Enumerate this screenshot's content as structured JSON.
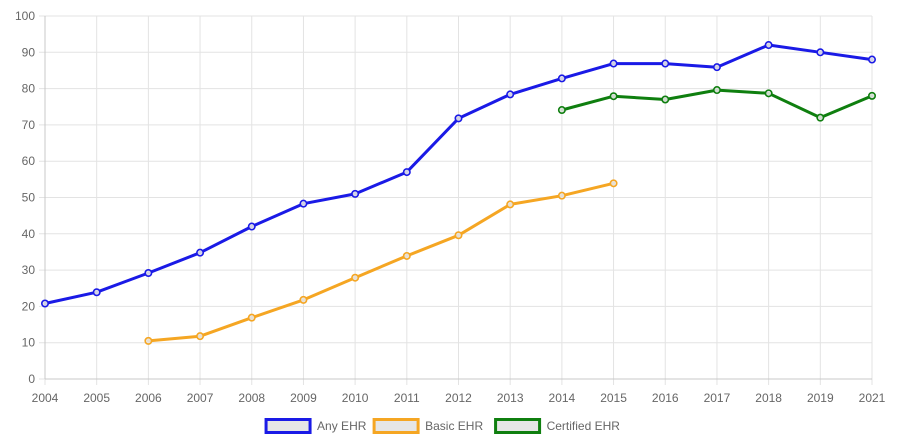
{
  "chart_data": {
    "type": "line",
    "title": "",
    "xlabel": "",
    "ylabel": "",
    "x": [
      "2004",
      "2005",
      "2006",
      "2007",
      "2008",
      "2009",
      "2010",
      "2011",
      "2012",
      "2013",
      "2014",
      "2015",
      "2016",
      "2017",
      "2018",
      "2019",
      "2021"
    ],
    "ylim": [
      0,
      100
    ],
    "yticks": [
      0,
      10,
      20,
      30,
      40,
      50,
      60,
      70,
      80,
      90,
      100
    ],
    "grid": true,
    "legend_position": "bottom",
    "series": [
      {
        "name": "Any EHR",
        "color": "#1a1ae6",
        "values": [
          20.8,
          23.9,
          29.2,
          34.8,
          42.0,
          48.3,
          51.0,
          57.0,
          71.8,
          78.4,
          82.8,
          86.9,
          86.9,
          85.9,
          92.0,
          90.0,
          88.0
        ]
      },
      {
        "name": "Basic EHR",
        "color": "#f5a623",
        "values": [
          null,
          null,
          10.5,
          11.8,
          16.9,
          21.8,
          27.9,
          33.9,
          39.6,
          48.1,
          50.5,
          53.9,
          null,
          null,
          null,
          null,
          null
        ]
      },
      {
        "name": "Certified EHR",
        "color": "#0f7f0f",
        "values": [
          null,
          null,
          null,
          null,
          null,
          null,
          null,
          null,
          null,
          null,
          74.1,
          77.9,
          77.0,
          79.6,
          78.7,
          72.0,
          78.0
        ]
      }
    ]
  }
}
